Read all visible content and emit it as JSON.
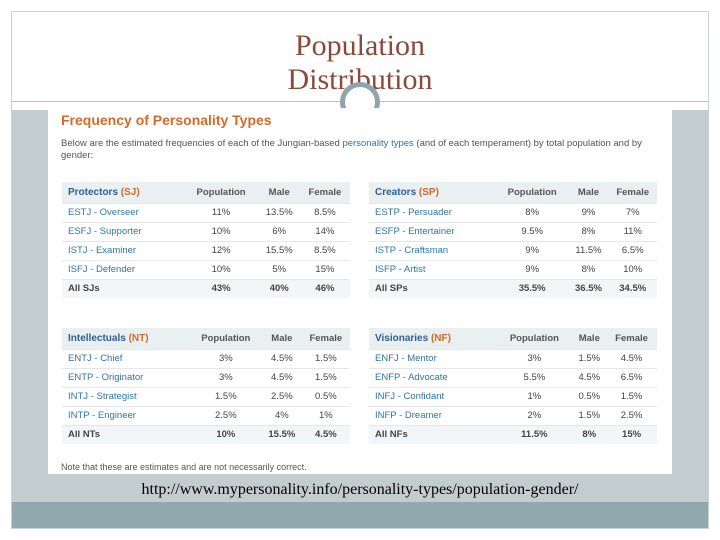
{
  "slide": {
    "title_line1": "Population",
    "title_line2": "Distribution",
    "source_url": "http://www.mypersonality.info/personality-types/population-gender/"
  },
  "screenshot": {
    "heading": "Frequency of Personality Types",
    "intro_a": "Below are the estimated frequencies of each of the Jungian-based ",
    "intro_link": "personality types",
    "intro_b": " (and of each temperament) by total population and by gender:",
    "note": "Note that these are estimates and are not necessarily correct.",
    "col_population": "Population",
    "col_male": "Male",
    "col_female": "Female",
    "tables": [
      {
        "name": "Protectors",
        "abbr": "(SJ)",
        "rows": [
          [
            "ESTJ - Overseer",
            "11%",
            "13.5%",
            "8.5%"
          ],
          [
            "ESFJ - Supporter",
            "10%",
            "6%",
            "14%"
          ],
          [
            "ISTJ - Examiner",
            "12%",
            "15.5%",
            "8.5%"
          ],
          [
            "ISFJ - Defender",
            "10%",
            "5%",
            "15%"
          ]
        ],
        "total": [
          "All SJs",
          "43%",
          "40%",
          "46%"
        ]
      },
      {
        "name": "Creators",
        "abbr": "(SP)",
        "rows": [
          [
            "ESTP - Persuader",
            "8%",
            "9%",
            "7%"
          ],
          [
            "ESFP - Entertainer",
            "9.5%",
            "8%",
            "11%"
          ],
          [
            "ISTP - Craftsman",
            "9%",
            "11.5%",
            "6.5%"
          ],
          [
            "ISFP - Artist",
            "9%",
            "8%",
            "10%"
          ]
        ],
        "total": [
          "All SPs",
          "35.5%",
          "36.5%",
          "34.5%"
        ]
      },
      {
        "name": "Intellectuals",
        "abbr": "(NT)",
        "rows": [
          [
            "ENTJ - Chief",
            "3%",
            "4.5%",
            "1.5%"
          ],
          [
            "ENTP - Originator",
            "3%",
            "4.5%",
            "1.5%"
          ],
          [
            "INTJ - Strategist",
            "1.5%",
            "2.5%",
            "0.5%"
          ],
          [
            "INTP - Engineer",
            "2.5%",
            "4%",
            "1%"
          ]
        ],
        "total": [
          "All NTs",
          "10%",
          "15.5%",
          "4.5%"
        ]
      },
      {
        "name": "Visionaries",
        "abbr": "(NF)",
        "rows": [
          [
            "ENFJ - Mentor",
            "3%",
            "1.5%",
            "4.5%"
          ],
          [
            "ENFP - Advocate",
            "5.5%",
            "4.5%",
            "6.5%"
          ],
          [
            "INFJ - Confidant",
            "1%",
            "0.5%",
            "1.5%"
          ],
          [
            "INFP - Dreamer",
            "2%",
            "1.5%",
            "2.5%"
          ]
        ],
        "total": [
          "All NFs",
          "11.5%",
          "8%",
          "15%"
        ]
      }
    ]
  },
  "colors": {
    "title": "#8a4a3a",
    "heading_orange": "#d46a28",
    "link_blue": "#2e76a6",
    "bottom_bar": "#8fa9af"
  }
}
